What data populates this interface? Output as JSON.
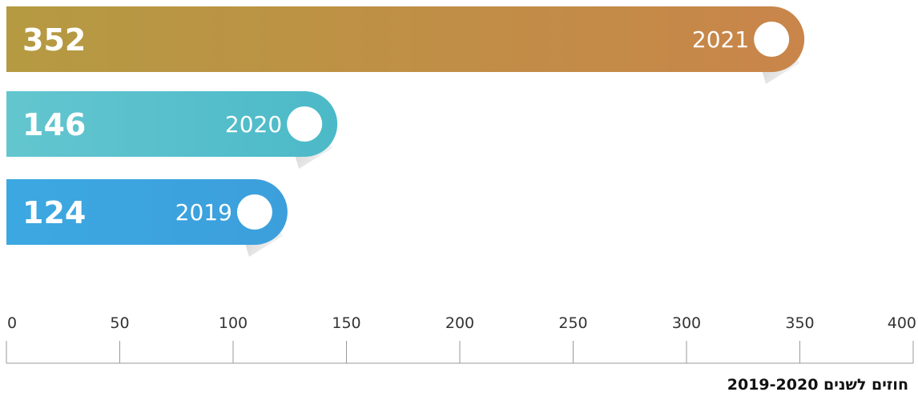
{
  "chart_data": {
    "type": "bar",
    "orientation": "horizontal",
    "categories": [
      "2021",
      "2020",
      "2019"
    ],
    "values": [
      352,
      146,
      124
    ],
    "value_labels": [
      "352",
      "146",
      "124"
    ],
    "xlim": [
      0,
      400
    ],
    "xticks": [
      "0",
      "50",
      "100",
      "150",
      "200",
      "250",
      "300",
      "350",
      "400"
    ],
    "grid": false,
    "caption": "חוזים לשנים 2019-2020",
    "colors": [
      {
        "start": "#B59A42",
        "end": "#C9854A"
      },
      {
        "start": "#63C6CF",
        "end": "#4CB9C8"
      },
      {
        "start": "#3CA8E2",
        "end": "#3C9FDB"
      }
    ]
  }
}
